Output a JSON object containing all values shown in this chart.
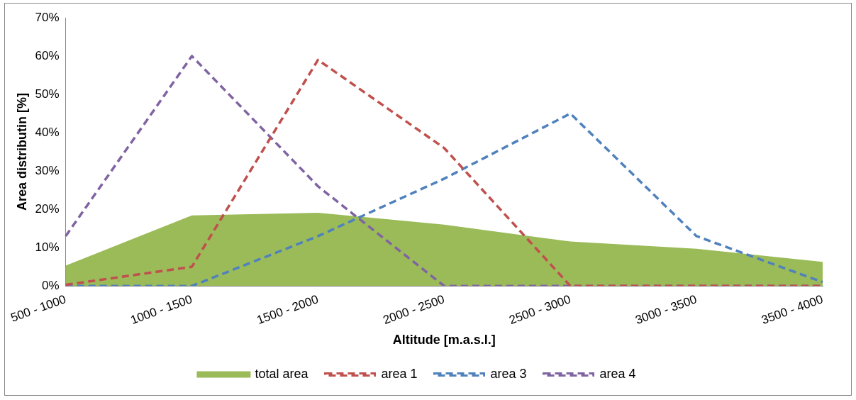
{
  "chart_data": {
    "type": "line",
    "xlabel": "Altitude [m.a.s.l.]",
    "ylabel": "Area distributin [%]",
    "categories": [
      "500 - 1000",
      "1000 - 1500",
      "1500 - 2000",
      "2000 - 2500",
      "2500 - 3000",
      "3000 - 3500",
      "3500 - 4000"
    ],
    "series": [
      {
        "name": "total area",
        "type": "area",
        "color": "#9bbb59",
        "values": [
          5.3,
          18.4,
          19.1,
          16,
          11.6,
          9.7,
          6.3
        ]
      },
      {
        "name": "area 1",
        "color": "#c0504d",
        "line_style": "dashed",
        "values": [
          0.3,
          5,
          59,
          36,
          0,
          0,
          0
        ]
      },
      {
        "name": "area 3",
        "color": "#4f81bd",
        "line_style": "dashed",
        "values": [
          0,
          0,
          13,
          28,
          45,
          13,
          1
        ]
      },
      {
        "name": "area 4",
        "color": "#8064a2",
        "line_style": "dashed",
        "values": [
          13,
          60,
          26,
          0,
          0,
          0,
          0
        ]
      }
    ],
    "ylim": [
      0,
      70
    ],
    "yticks": [
      {
        "value": 0,
        "label": "0%"
      },
      {
        "value": 10,
        "label": "10%"
      },
      {
        "value": 20,
        "label": "20%"
      },
      {
        "value": 30,
        "label": "30%"
      },
      {
        "value": 40,
        "label": "40%"
      },
      {
        "value": 50,
        "label": "50%"
      },
      {
        "value": 60,
        "label": "60%"
      },
      {
        "value": 70,
        "label": "70%"
      }
    ],
    "grid": false,
    "legend": "bottom",
    "marker": "none"
  }
}
